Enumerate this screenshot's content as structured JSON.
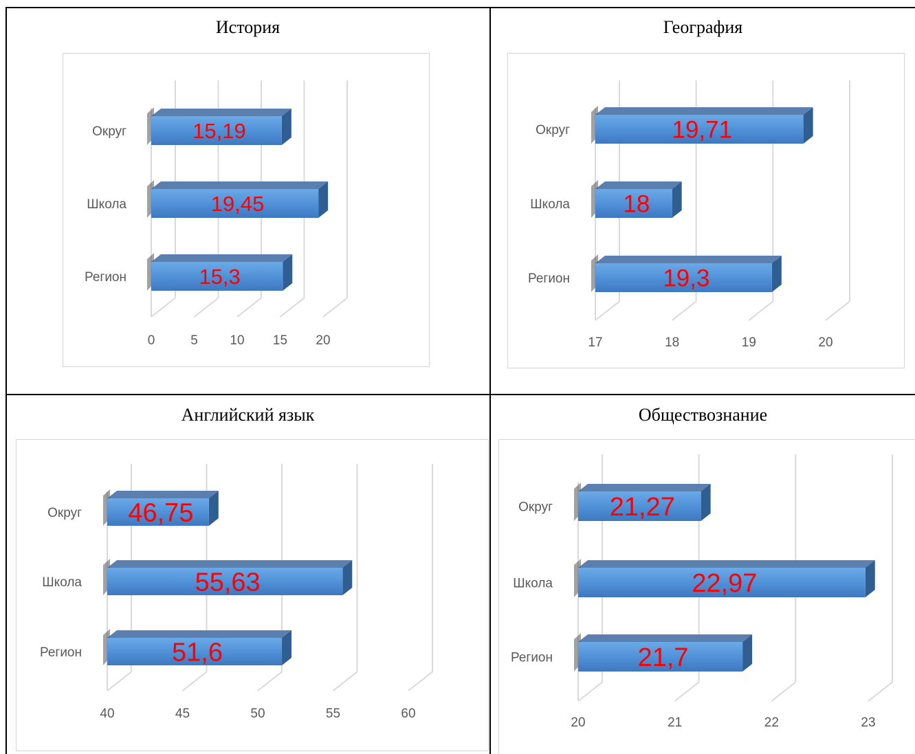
{
  "charts": [
    {
      "title": "История",
      "chart_data": {
        "type": "bar",
        "orientation": "horizontal-3d",
        "categories": [
          "Округ",
          "Школа",
          "Регион"
        ],
        "values": [
          15.19,
          19.45,
          15.3
        ],
        "data_labels": [
          "15,19",
          "19,45",
          "15,3"
        ],
        "xlim": [
          0,
          20
        ],
        "ticks": [
          "0",
          "5",
          "10",
          "15",
          "20"
        ],
        "tick_values": [
          0,
          5,
          10,
          15,
          20
        ],
        "grid": true,
        "legend": "none"
      }
    },
    {
      "title": "География",
      "chart_data": {
        "type": "bar",
        "orientation": "horizontal-3d",
        "categories": [
          "Округ",
          "Школа",
          "Регион"
        ],
        "values": [
          19.71,
          18,
          19.3
        ],
        "data_labels": [
          "19,71",
          "18",
          "19,3"
        ],
        "xlim": [
          17,
          20
        ],
        "ticks": [
          "17",
          "18",
          "19",
          "20"
        ],
        "tick_values": [
          17,
          18,
          19,
          20
        ],
        "grid": true,
        "legend": "none"
      }
    },
    {
      "title": "Английский язык",
      "chart_data": {
        "type": "bar",
        "orientation": "horizontal-3d",
        "categories": [
          "Округ",
          "Школа",
          "Регион"
        ],
        "values": [
          46.75,
          55.63,
          51.6
        ],
        "data_labels": [
          "46,75",
          "55,63",
          "51,6"
        ],
        "xlim": [
          40,
          60
        ],
        "ticks": [
          "40",
          "45",
          "50",
          "55",
          "60"
        ],
        "tick_values": [
          40,
          45,
          50,
          55,
          60
        ],
        "grid": true,
        "legend": "none"
      }
    },
    {
      "title": "Обществознание",
      "chart_data": {
        "type": "bar",
        "orientation": "horizontal-3d",
        "categories": [
          "Округ",
          "Школа",
          "Регион"
        ],
        "values": [
          21.27,
          22.97,
          21.7
        ],
        "data_labels": [
          "21,27",
          "22,97",
          "21,7"
        ],
        "xlim": [
          20,
          23
        ],
        "ticks": [
          "20",
          "21",
          "22",
          "23"
        ],
        "tick_values": [
          20,
          21,
          22,
          23
        ],
        "grid": true,
        "legend": "none"
      }
    }
  ],
  "colors": {
    "bar_front": "#4f8fd6",
    "bar_top": "#5b7fae",
    "bar_side": "#2f5f92",
    "label": "#ff0000",
    "grid": "#d9d9d9",
    "text": "#595959"
  }
}
